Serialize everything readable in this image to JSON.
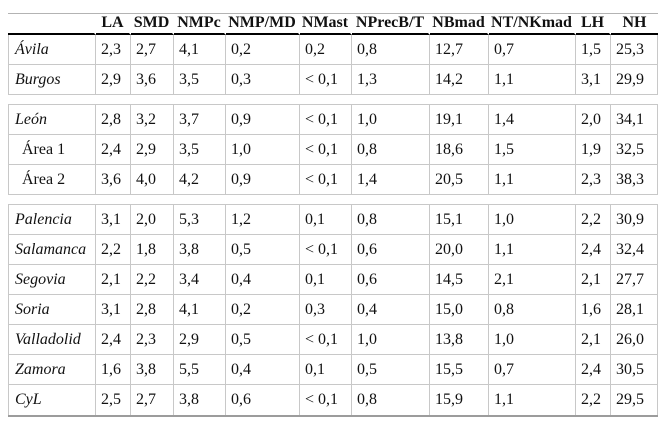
{
  "table": {
    "columns": [
      "LA",
      "SMD",
      "NMPc",
      "NMP/MD",
      "NMast",
      "NPrecB/T",
      "NBmad",
      "NT/NKmad",
      "LH",
      "NH"
    ],
    "rows": [
      {
        "type": "data",
        "label": "Ávila",
        "italic": true,
        "indent": false,
        "values": [
          "2,3",
          "2,7",
          "4,1",
          "0,2",
          "0,2",
          "0,8",
          "12,7",
          "0,7",
          "1,5",
          "25,3"
        ]
      },
      {
        "type": "data",
        "label": "Burgos",
        "italic": true,
        "indent": false,
        "values": [
          "2,9",
          "3,6",
          "3,5",
          "0,3",
          "< 0,1",
          "1,3",
          "14,2",
          "1,1",
          "3,1",
          "29,9"
        ]
      },
      {
        "type": "separator"
      },
      {
        "type": "data",
        "label": "León",
        "italic": true,
        "indent": false,
        "values": [
          "2,8",
          "3,2",
          "3,7",
          "0,9",
          "< 0,1",
          "1,0",
          "19,1",
          "1,4",
          "2,0",
          "34,1"
        ]
      },
      {
        "type": "data",
        "label": "Área 1",
        "italic": false,
        "indent": true,
        "values": [
          "2,4",
          "2,9",
          "3,5",
          "1,0",
          "< 0,1",
          "0,8",
          "18,6",
          "1,5",
          "1,9",
          "32,5"
        ]
      },
      {
        "type": "data",
        "label": "Área 2",
        "italic": false,
        "indent": true,
        "values": [
          "3,6",
          "4,0",
          "4,2",
          "0,9",
          "< 0,1",
          "1,4",
          "20,5",
          "1,1",
          "2,3",
          "38,3"
        ]
      },
      {
        "type": "separator"
      },
      {
        "type": "data",
        "label": "Palencia",
        "italic": true,
        "indent": false,
        "values": [
          "3,1",
          "2,0",
          "5,3",
          "1,2",
          "0,1",
          "0,8",
          "15,1",
          "1,0",
          "2,2",
          "30,9"
        ]
      },
      {
        "type": "data",
        "label": "Salamanca",
        "italic": true,
        "indent": false,
        "values": [
          "2,2",
          "1,8",
          "3,8",
          "0,5",
          "< 0,1",
          "0,6",
          "20,0",
          "1,1",
          "2,4",
          "32,4"
        ]
      },
      {
        "type": "data",
        "label": "Segovia",
        "italic": true,
        "indent": false,
        "values": [
          "2,1",
          "2,2",
          "3,4",
          "0,4",
          "0,1",
          "0,6",
          "14,5",
          "2,1",
          "2,1",
          "27,7"
        ]
      },
      {
        "type": "data",
        "label": "Soria",
        "italic": true,
        "indent": false,
        "values": [
          "3,1",
          "2,8",
          "4,1",
          "0,2",
          "0,3",
          "0,4",
          "15,0",
          "0,8",
          "1,6",
          "28,1"
        ]
      },
      {
        "type": "data",
        "label": "Valladolid",
        "italic": true,
        "indent": false,
        "values": [
          "2,4",
          "2,3",
          "2,9",
          "0,5",
          "< 0,1",
          "1,0",
          "13,8",
          "1,0",
          "2,1",
          "26,0"
        ]
      },
      {
        "type": "data",
        "label": "Zamora",
        "italic": true,
        "indent": false,
        "values": [
          "1,6",
          "3,8",
          "5,5",
          "0,4",
          "0,1",
          "0,5",
          "15,5",
          "0,7",
          "2,4",
          "30,5"
        ]
      },
      {
        "type": "data",
        "label": "CyL",
        "italic": true,
        "indent": false,
        "values": [
          "2,5",
          "2,7",
          "3,8",
          "0,6",
          "< 0,1",
          "0,8",
          "15,9",
          "1,1",
          "2,2",
          "29,5"
        ]
      }
    ],
    "colors": {
      "grid": "#c8c8c8",
      "header_rule": "#000000",
      "top_rule": "#b3b3b3",
      "bottom_rule": "#9c9c9c",
      "text": "#111111",
      "background": "#ffffff"
    }
  }
}
